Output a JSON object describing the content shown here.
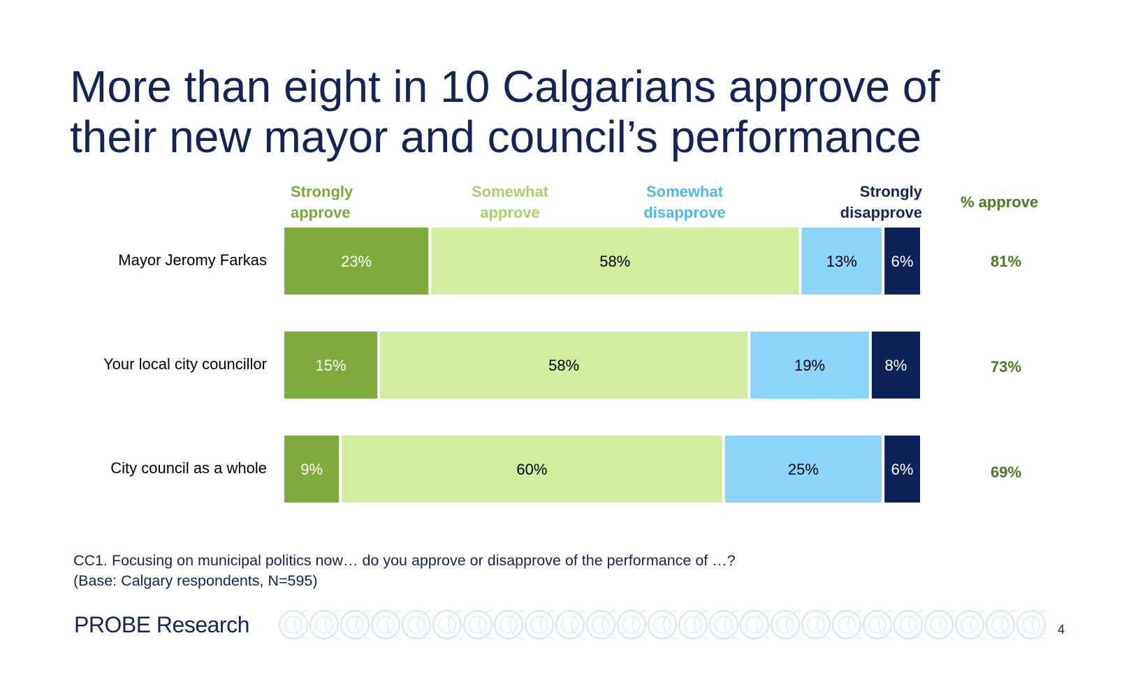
{
  "title_line1": "More than eight in 10 Calgarians approve of",
  "title_line2": "their new mayor and council’s performance",
  "legend": {
    "strongly_approve_1": "Strongly",
    "strongly_approve_2": "approve",
    "somewhat_approve_1": "Somewhat",
    "somewhat_approve_2": "approve",
    "somewhat_disapprove_1": "Somewhat",
    "somewhat_disapprove_2": "disapprove",
    "strongly_disapprove_1": "Strongly",
    "strongly_disapprove_2": "disapprove",
    "pct_approve": "% approve"
  },
  "colors": {
    "strongly_approve": "#7fab3c",
    "somewhat_approve": "#d1eda0",
    "somewhat_disapprove": "#8dd4fa",
    "strongly_disapprove": "#0d2357",
    "approve_text": "#4d7a1e",
    "title": "#14235a"
  },
  "chart_data": {
    "type": "bar",
    "orientation": "horizontal-stacked-100",
    "categories": [
      "Mayor Jeromy Farkas",
      "Your local city councillor",
      "City council as a whole"
    ],
    "series": [
      {
        "name": "Strongly approve",
        "values": [
          23,
          15,
          9
        ],
        "labels": [
          "23%",
          "15%",
          "9%"
        ]
      },
      {
        "name": "Somewhat approve",
        "values": [
          58,
          58,
          60
        ],
        "labels": [
          "58%",
          "58%",
          "60%"
        ]
      },
      {
        "name": "Somewhat disapprove",
        "values": [
          13,
          19,
          25
        ],
        "labels": [
          "13%",
          "19%",
          "25%"
        ]
      },
      {
        "name": "Strongly disapprove",
        "values": [
          6,
          8,
          6
        ],
        "labels": [
          "6%",
          "8%",
          "6%"
        ]
      }
    ],
    "approve": [
      "81%",
      "73%",
      "69%"
    ],
    "legend": "top"
  },
  "footnote_line1": "CC1. Focusing on municipal politics now… do you approve or disapprove of the performance of …?",
  "footnote_line2": "(Base: Calgary respondents, N=595)",
  "logo_text": "PROBE Research",
  "page_number": "4"
}
